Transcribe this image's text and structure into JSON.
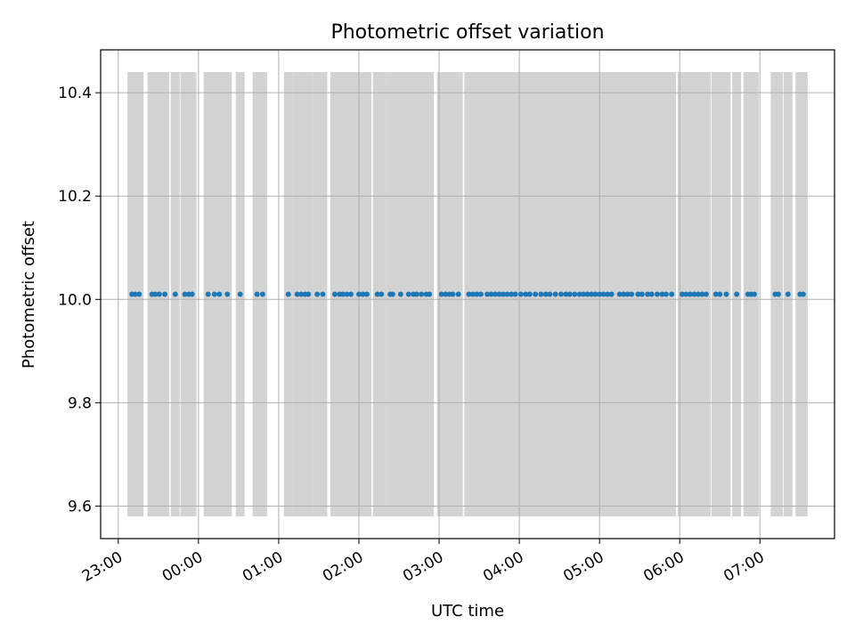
{
  "chart_data": {
    "type": "scatter",
    "title": "Photometric offset variation",
    "xlabel": "UTC time",
    "ylabel": "Photometric offset",
    "x_unit": "UTC hours (24 = 00:00 next day)",
    "xlim": [
      22.78,
      31.93
    ],
    "ylim": [
      9.537,
      10.483
    ],
    "grid": true,
    "y_ticks": [
      9.6,
      9.8,
      10.0,
      10.2,
      10.4
    ],
    "x_ticks": [
      {
        "value": 23,
        "label": "23:00"
      },
      {
        "value": 24,
        "label": "00:00"
      },
      {
        "value": 25,
        "label": "01:00"
      },
      {
        "value": 26,
        "label": "02:00"
      },
      {
        "value": 27,
        "label": "03:00"
      },
      {
        "value": 28,
        "label": "04:00"
      },
      {
        "value": 29,
        "label": "05:00"
      },
      {
        "value": 30,
        "label": "06:00"
      },
      {
        "value": 31,
        "label": "07:00"
      }
    ],
    "error_band": {
      "low": 9.58,
      "high": 10.44,
      "color": "#d3d3d3"
    },
    "point_value": 10.01,
    "point_color": "#1f77b4",
    "x": [
      23.17,
      23.21,
      23.26,
      23.42,
      23.46,
      23.51,
      23.58,
      23.71,
      23.83,
      23.88,
      23.92,
      24.12,
      24.2,
      24.26,
      24.36,
      24.52,
      24.73,
      24.8,
      25.12,
      25.23,
      25.28,
      25.33,
      25.37,
      25.48,
      25.55,
      25.7,
      25.76,
      25.8,
      25.85,
      25.9,
      26.0,
      26.05,
      26.1,
      26.23,
      26.28,
      26.39,
      26.42,
      26.52,
      26.62,
      26.68,
      26.72,
      26.78,
      26.84,
      26.88,
      27.03,
      27.08,
      27.13,
      27.17,
      27.24,
      27.37,
      27.42,
      27.47,
      27.52,
      27.6,
      27.65,
      27.7,
      27.75,
      27.8,
      27.85,
      27.9,
      27.95,
      28.02,
      28.08,
      28.13,
      28.2,
      28.27,
      28.33,
      28.38,
      28.45,
      28.52,
      28.58,
      28.63,
      28.69,
      28.75,
      28.8,
      28.85,
      28.9,
      28.95,
      29.0,
      29.05,
      29.1,
      29.15,
      29.25,
      29.3,
      29.35,
      29.4,
      29.48,
      29.53,
      29.6,
      29.65,
      29.72,
      29.78,
      29.83,
      29.9,
      30.03,
      30.08,
      30.13,
      30.18,
      30.23,
      30.28,
      30.33,
      30.45,
      30.5,
      30.58,
      30.71,
      30.85,
      30.89,
      30.93,
      31.19,
      31.23,
      31.35,
      31.5,
      31.54
    ]
  }
}
